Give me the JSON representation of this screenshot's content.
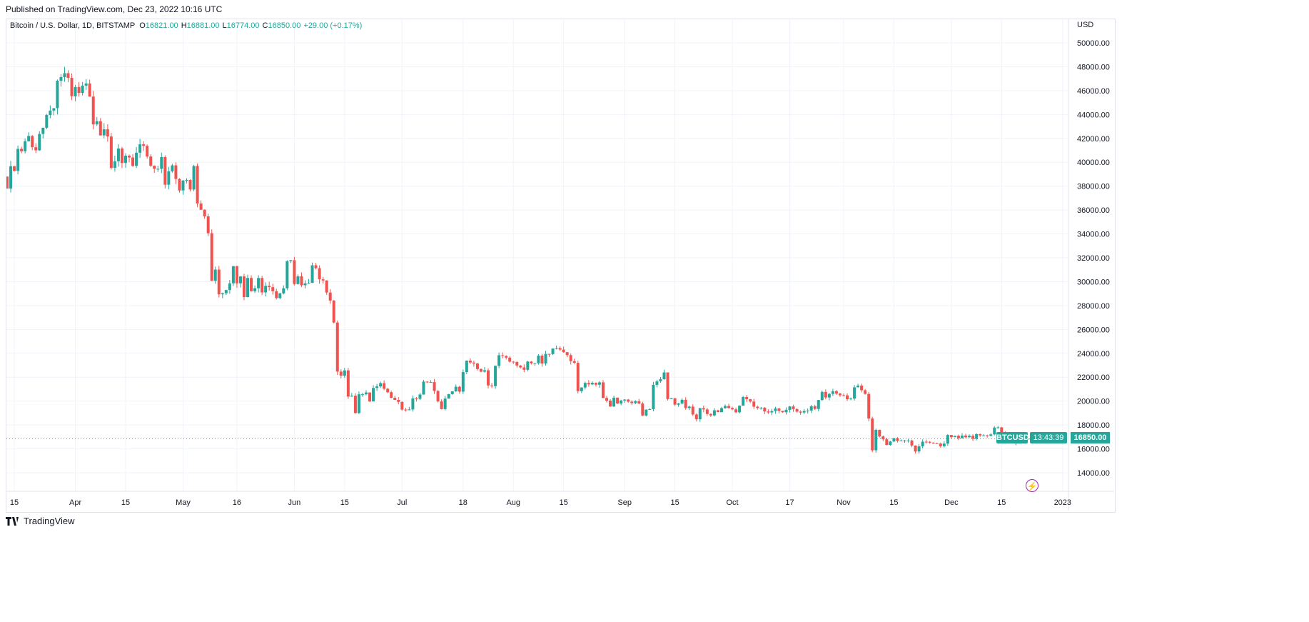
{
  "published": "Published on TradingView.com, Dec 23, 2022 10:16 UTC",
  "legend": {
    "symbol": "Bitcoin / U.S. Dollar, 1D, BITSTAMP",
    "open_label": "O",
    "open": "16821.00",
    "high_label": "H",
    "high": "16881.00",
    "low_label": "L",
    "low": "16774.00",
    "close_label": "C",
    "close": "16850.00",
    "change": "+29.00 (+0.17%)"
  },
  "price_axis": {
    "currency": "USD"
  },
  "last_price": {
    "ticker": "BTCUSD",
    "price": "16850.00",
    "countdown": "13:43:39"
  },
  "footer": {
    "brand": "TradingView"
  },
  "colors": {
    "up": "#26a69a",
    "down": "#ef5350",
    "grid": "#f0f3fa",
    "accent": "#9c27b0"
  },
  "chart_data": {
    "type": "candlestick",
    "title": "Bitcoin / U.S. Dollar, 1D, BITSTAMP",
    "start_date": "2022-03-13",
    "first_open": 38800,
    "ylim": [
      13000,
      51500
    ],
    "yticks": [
      "14000.00",
      "16000.00",
      "18000.00",
      "20000.00",
      "22000.00",
      "24000.00",
      "26000.00",
      "28000.00",
      "30000.00",
      "32000.00",
      "34000.00",
      "36000.00",
      "38000.00",
      "40000.00",
      "42000.00",
      "44000.00",
      "46000.00",
      "48000.00",
      "50000.00"
    ],
    "xticks": [
      {
        "day": 2,
        "label": "15"
      },
      {
        "day": 19,
        "label": "Apr"
      },
      {
        "day": 33,
        "label": "15"
      },
      {
        "day": 49,
        "label": "May"
      },
      {
        "day": 64,
        "label": "16"
      },
      {
        "day": 80,
        "label": "Jun"
      },
      {
        "day": 94,
        "label": "15"
      },
      {
        "day": 110,
        "label": "Jul"
      },
      {
        "day": 127,
        "label": "18"
      },
      {
        "day": 141,
        "label": "Aug"
      },
      {
        "day": 155,
        "label": "15"
      },
      {
        "day": 172,
        "label": "Sep"
      },
      {
        "day": 186,
        "label": "15"
      },
      {
        "day": 202,
        "label": "Oct"
      },
      {
        "day": 218,
        "label": "17"
      },
      {
        "day": 233,
        "label": "Nov"
      },
      {
        "day": 247,
        "label": "15"
      },
      {
        "day": 263,
        "label": "Dec"
      },
      {
        "day": 277,
        "label": "15"
      },
      {
        "day": 294,
        "label": "2023"
      }
    ],
    "closes": [
      37800,
      39670,
      39280,
      41120,
      40920,
      41760,
      42200,
      41260,
      41000,
      42370,
      42890,
      43960,
      44330,
      44530,
      46830,
      47130,
      47460,
      47070,
      45530,
      46300,
      45810,
      46420,
      46600,
      45500,
      43170,
      43440,
      42250,
      42760,
      42160,
      39530,
      40080,
      41150,
      39940,
      40550,
      40400,
      39700,
      40800,
      41500,
      41370,
      40480,
      39710,
      39450,
      39450,
      40430,
      38120,
      39240,
      39740,
      38600,
      37640,
      38470,
      38520,
      37720,
      39690,
      36550,
      36020,
      35470,
      34060,
      30080,
      31010,
      28940,
      29030,
      29300,
      29860,
      31300,
      29860,
      30440,
      28710,
      30310,
      29200,
      29450,
      30310,
      29100,
      29650,
      29540,
      29200,
      28630,
      29020,
      29450,
      31720,
      31800,
      29800,
      30450,
      29700,
      29860,
      29900,
      31370,
      31130,
      30200,
      30100,
      29090,
      28420,
      26580,
      22470,
      22130,
      22570,
      20380,
      20450,
      19000,
      20570,
      20570,
      20720,
      19970,
      21100,
      21230,
      21500,
      21030,
      20740,
      20280,
      20100,
      19930,
      19290,
      19260,
      19300,
      20220,
      20190,
      20550,
      21630,
      21590,
      21590,
      20850,
      19970,
      19330,
      20210,
      20580,
      20820,
      21200,
      20790,
      22430,
      23390,
      23230,
      23150,
      22680,
      22460,
      22580,
      21310,
      21250,
      22950,
      23840,
      23780,
      23640,
      23300,
      23270,
      22980,
      22820,
      22620,
      23310,
      23170,
      23170,
      23810,
      23150,
      23950,
      23940,
      24400,
      24440,
      24310,
      24100,
      23850,
      23340,
      23200,
      20830,
      21140,
      21520,
      21400,
      21530,
      21370,
      21570,
      20260,
      20040,
      19550,
      20290,
      19800,
      20050,
      20130,
      19950,
      19830,
      19990,
      19800,
      18790,
      19290,
      19320,
      21360,
      21650,
      21830,
      22400,
      20170,
      20240,
      19700,
      19800,
      20110,
      19420,
      19540,
      18880,
      18480,
      19410,
      19300,
      18920,
      18800,
      19230,
      19080,
      19410,
      19590,
      19420,
      19310,
      19060,
      19620,
      20340,
      20160,
      19960,
      19530,
      19420,
      19450,
      19130,
      19050,
      19160,
      19380,
      19180,
      19070,
      19270,
      19550,
      19330,
      19120,
      19040,
      19170,
      19210,
      19570,
      19340,
      20090,
      20770,
      20300,
      20600,
      20820,
      20630,
      20490,
      20480,
      20160,
      20210,
      21150,
      21300,
      20910,
      20600,
      18540,
      15880,
      17590,
      17040,
      16800,
      16330,
      16620,
      16900,
      16660,
      16700,
      16700,
      16700,
      16280,
      15780,
      16210,
      16600,
      16590,
      16520,
      16460,
      16440,
      16220,
      16440,
      17160,
      16980,
      17090,
      16890,
      17110,
      16970,
      17090,
      16840,
      17230,
      17130,
      17130,
      17090,
      17210,
      17780,
      17800,
      17360,
      16630,
      16780,
      16740,
      16440,
      16900,
      16820,
      16821,
      16850
    ],
    "last_candle": {
      "open": 16821,
      "high": 16881,
      "low": 16774,
      "close": 16850
    }
  }
}
